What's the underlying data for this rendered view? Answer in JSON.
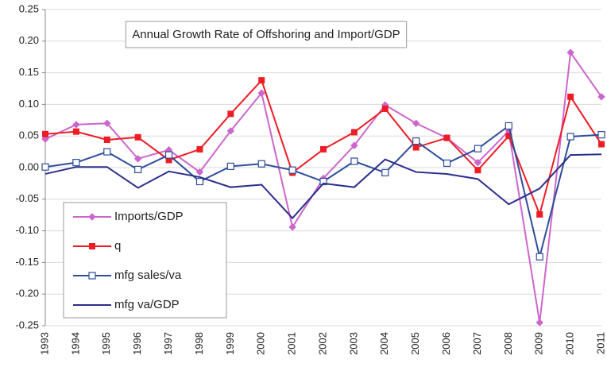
{
  "chart_data": {
    "type": "line",
    "title": "Annual Growth Rate of Offshoring and Import/GDP",
    "categories": [
      "1993",
      "1994",
      "1995",
      "1996",
      "1997",
      "1998",
      "1999",
      "2000",
      "2001",
      "2002",
      "2003",
      "2004",
      "2005",
      "2006",
      "2007",
      "2008",
      "2009",
      "2010",
      "2011"
    ],
    "series": [
      {
        "name": "Imports/GDP",
        "color": "#cc66cc",
        "marker": "diamond",
        "values": [
          0.045,
          0.068,
          0.07,
          0.014,
          0.028,
          -0.007,
          0.058,
          0.118,
          -0.094,
          -0.017,
          0.035,
          0.099,
          0.07,
          0.047,
          0.008,
          0.058,
          -0.245,
          0.182,
          0.112
        ]
      },
      {
        "name": "q",
        "color": "#ee1c24",
        "marker": "square",
        "values": [
          0.053,
          0.057,
          0.044,
          0.048,
          0.012,
          0.029,
          0.085,
          0.138,
          -0.008,
          0.029,
          0.056,
          0.093,
          0.032,
          0.047,
          -0.004,
          0.05,
          -0.074,
          0.112,
          0.037
        ]
      },
      {
        "name": "mfg sales/va",
        "color": "#2e4d9a",
        "marker": "hollow-square",
        "values": [
          0.001,
          0.008,
          0.025,
          -0.003,
          0.02,
          -0.022,
          0.002,
          0.006,
          -0.004,
          -0.022,
          0.01,
          -0.008,
          0.042,
          0.007,
          0.03,
          0.066,
          -0.141,
          0.049,
          0.052
        ]
      },
      {
        "name": "mfg va/GDP",
        "color": "#2b2e8c",
        "marker": "none",
        "values": [
          -0.01,
          0.001,
          0.001,
          -0.032,
          -0.006,
          -0.015,
          -0.031,
          -0.027,
          -0.08,
          -0.025,
          -0.031,
          0.013,
          -0.007,
          -0.01,
          -0.018,
          -0.058,
          -0.033,
          0.02,
          0.021
        ]
      }
    ],
    "ylim": [
      -0.25,
      0.25
    ],
    "yticks": [
      -0.25,
      {
        "value": -0.2,
        "label": "-0.20"
      },
      -0.15,
      {
        "value": -0.1,
        "label": "-0.10"
      },
      -0.05,
      {
        "value": 0,
        "label": "0.00"
      },
      0.05,
      {
        "value": 0.1,
        "label": "0.10"
      },
      0.15,
      {
        "value": 0.2,
        "label": "0.20"
      },
      0.25
    ],
    "grid": true,
    "legend_loc": "lower left"
  }
}
